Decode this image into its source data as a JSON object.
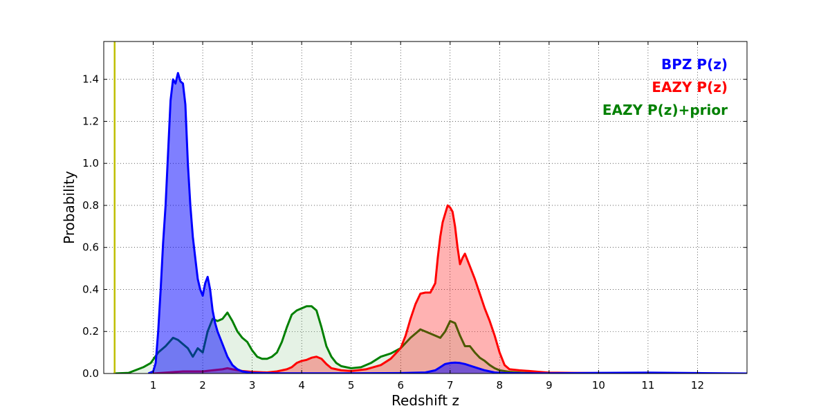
{
  "chart_data": {
    "type": "area",
    "xlabel": "Redshift z",
    "ylabel": "Probability",
    "xlim": [
      0,
      13
    ],
    "ylim": [
      0,
      1.58
    ],
    "xticks": [
      1,
      2,
      3,
      4,
      5,
      6,
      7,
      8,
      9,
      10,
      11,
      12
    ],
    "yticks": [
      0.0,
      0.2,
      0.4,
      0.6,
      0.8,
      1.0,
      1.2,
      1.4
    ],
    "ytick_labels": [
      "0.0",
      "0.2",
      "0.4",
      "0.6",
      "0.8",
      "1.0",
      "1.2",
      "1.4"
    ],
    "grid": true,
    "legend_position": "top-right",
    "vline": {
      "x": 0.22,
      "color": "#bfbf00"
    },
    "series": [
      {
        "name": "EAZY P(z)+prior",
        "color": "#008000",
        "fill": "#008000",
        "fill_opacity": 0.1,
        "x": [
          0.2,
          0.5,
          0.8,
          0.95,
          1.1,
          1.25,
          1.4,
          1.5,
          1.6,
          1.7,
          1.8,
          1.9,
          2.0,
          2.1,
          2.2,
          2.3,
          2.4,
          2.5,
          2.6,
          2.7,
          2.8,
          2.9,
          3.0,
          3.1,
          3.2,
          3.3,
          3.4,
          3.5,
          3.6,
          3.7,
          3.8,
          3.9,
          4.0,
          4.1,
          4.2,
          4.3,
          4.4,
          4.5,
          4.6,
          4.7,
          4.8,
          4.9,
          5.0,
          5.2,
          5.4,
          5.6,
          5.8,
          6.0,
          6.2,
          6.4,
          6.5,
          6.6,
          6.7,
          6.8,
          6.9,
          7.0,
          7.1,
          7.2,
          7.3,
          7.4,
          7.5,
          7.6,
          7.7,
          7.8,
          7.9,
          8.0,
          8.2,
          8.5,
          9.0,
          10.0,
          11.0,
          11.8
        ],
        "y": [
          0.0,
          0.003,
          0.03,
          0.05,
          0.1,
          0.13,
          0.17,
          0.16,
          0.14,
          0.12,
          0.08,
          0.12,
          0.1,
          0.2,
          0.26,
          0.25,
          0.26,
          0.29,
          0.25,
          0.2,
          0.17,
          0.15,
          0.11,
          0.08,
          0.07,
          0.07,
          0.08,
          0.1,
          0.15,
          0.22,
          0.28,
          0.3,
          0.31,
          0.32,
          0.32,
          0.3,
          0.22,
          0.13,
          0.08,
          0.05,
          0.035,
          0.03,
          0.025,
          0.03,
          0.05,
          0.08,
          0.095,
          0.12,
          0.17,
          0.21,
          0.2,
          0.19,
          0.18,
          0.17,
          0.2,
          0.25,
          0.24,
          0.18,
          0.13,
          0.13,
          0.1,
          0.075,
          0.06,
          0.04,
          0.025,
          0.015,
          0.008,
          0.003,
          0.002,
          0.001,
          0.001,
          0.0
        ]
      },
      {
        "name": "EAZY P(z)",
        "color": "#ff0000",
        "fill": "#ff0000",
        "fill_opacity": 0.3,
        "x": [
          1.0,
          1.3,
          1.6,
          2.0,
          2.2,
          2.4,
          2.5,
          2.6,
          2.8,
          3.0,
          3.3,
          3.5,
          3.7,
          3.8,
          3.9,
          4.0,
          4.1,
          4.2,
          4.3,
          4.4,
          4.5,
          4.6,
          4.8,
          5.0,
          5.3,
          5.6,
          5.8,
          6.0,
          6.1,
          6.2,
          6.3,
          6.4,
          6.5,
          6.6,
          6.7,
          6.75,
          6.8,
          6.85,
          6.9,
          6.95,
          7.0,
          7.05,
          7.1,
          7.15,
          7.2,
          7.25,
          7.3,
          7.4,
          7.5,
          7.6,
          7.7,
          7.8,
          7.9,
          8.0,
          8.1,
          8.2,
          8.4,
          8.6,
          8.8,
          9.0,
          9.5,
          10.0,
          11.0,
          11.8
        ],
        "y": [
          0.0,
          0.005,
          0.01,
          0.01,
          0.015,
          0.02,
          0.025,
          0.02,
          0.012,
          0.008,
          0.005,
          0.01,
          0.02,
          0.03,
          0.05,
          0.06,
          0.065,
          0.075,
          0.08,
          0.07,
          0.045,
          0.025,
          0.015,
          0.012,
          0.02,
          0.04,
          0.07,
          0.12,
          0.18,
          0.26,
          0.33,
          0.38,
          0.385,
          0.385,
          0.43,
          0.55,
          0.65,
          0.72,
          0.76,
          0.8,
          0.79,
          0.77,
          0.7,
          0.6,
          0.52,
          0.55,
          0.57,
          0.51,
          0.45,
          0.38,
          0.31,
          0.25,
          0.18,
          0.1,
          0.04,
          0.02,
          0.015,
          0.012,
          0.008,
          0.004,
          0.003,
          0.002,
          0.001,
          0.0
        ]
      },
      {
        "name": "BPZ P(z)",
        "color": "#0000ff",
        "fill": "#0000ff",
        "fill_opacity": 0.5,
        "x": [
          0.9,
          1.0,
          1.05,
          1.1,
          1.15,
          1.2,
          1.25,
          1.3,
          1.35,
          1.4,
          1.45,
          1.5,
          1.55,
          1.6,
          1.65,
          1.7,
          1.75,
          1.8,
          1.85,
          1.9,
          1.95,
          2.0,
          2.05,
          2.1,
          2.15,
          2.2,
          2.25,
          2.3,
          2.4,
          2.5,
          2.6,
          2.7,
          2.8,
          3.0,
          3.2,
          3.5,
          4.0,
          5.0,
          6.0,
          6.5,
          6.7,
          6.8,
          6.9,
          7.0,
          7.1,
          7.2,
          7.3,
          7.5,
          7.7,
          7.9,
          8.1,
          8.5,
          9.0,
          10.0,
          11.0,
          12.0,
          13.0
        ],
        "y": [
          0.0,
          0.01,
          0.05,
          0.2,
          0.4,
          0.62,
          0.8,
          1.05,
          1.3,
          1.4,
          1.38,
          1.43,
          1.39,
          1.38,
          1.28,
          1.0,
          0.8,
          0.65,
          0.55,
          0.45,
          0.4,
          0.37,
          0.43,
          0.46,
          0.4,
          0.3,
          0.24,
          0.2,
          0.14,
          0.08,
          0.04,
          0.02,
          0.01,
          0.003,
          0.002,
          0.001,
          0.001,
          0.001,
          0.002,
          0.005,
          0.015,
          0.03,
          0.045,
          0.05,
          0.052,
          0.05,
          0.045,
          0.03,
          0.015,
          0.005,
          0.002,
          0.001,
          0.001,
          0.003,
          0.004,
          0.002,
          0.0
        ]
      }
    ],
    "legend": [
      {
        "label": "BPZ P(z)",
        "color": "#0000ff"
      },
      {
        "label": "EAZY P(z)",
        "color": "#ff0000"
      },
      {
        "label": "EAZY P(z)+prior",
        "color": "#008000"
      }
    ]
  }
}
